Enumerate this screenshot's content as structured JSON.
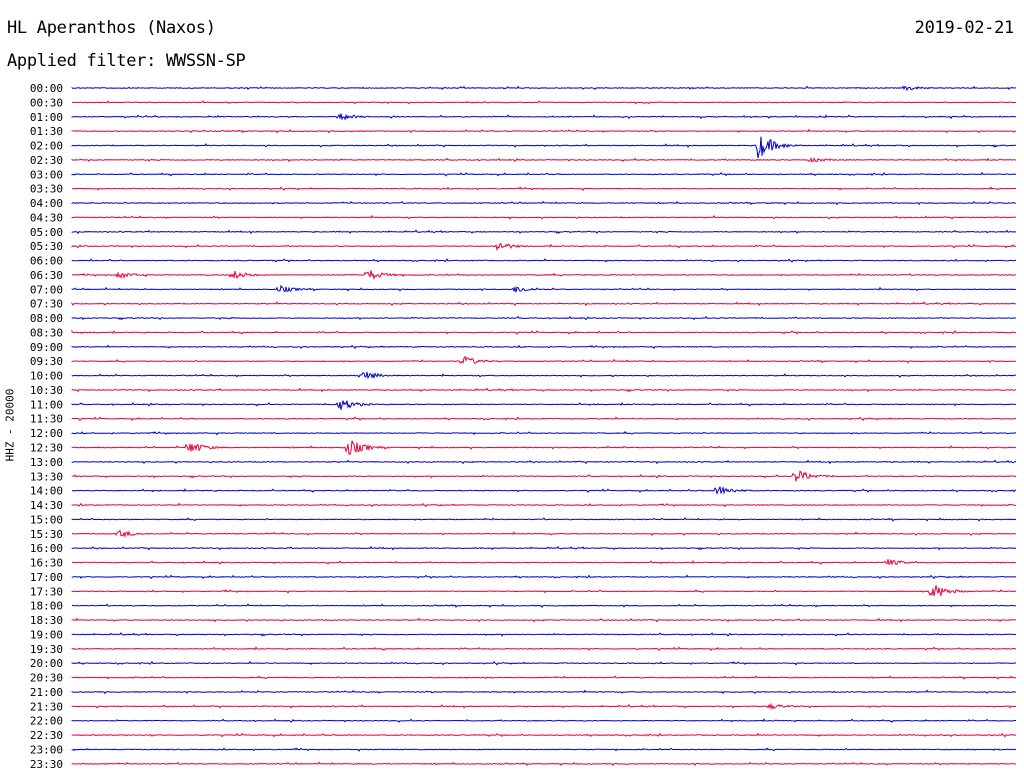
{
  "header": {
    "station": "HL Aperanthos (Naxos)",
    "date": "2019-02-21",
    "filter": "Applied filter: WWSSN-SP"
  },
  "chart_data": {
    "type": "line",
    "title": "HL Aperanthos (Naxos)",
    "ylabel": "HHZ - 20000",
    "xlabel": "",
    "row_labels": [
      "00:00",
      "00:30",
      "01:00",
      "01:30",
      "02:00",
      "02:30",
      "03:00",
      "03:30",
      "04:00",
      "04:30",
      "05:00",
      "05:30",
      "06:00",
      "06:30",
      "07:00",
      "07:30",
      "08:00",
      "08:30",
      "09:00",
      "09:30",
      "10:00",
      "10:30",
      "11:00",
      "11:30",
      "12:00",
      "12:30",
      "13:00",
      "13:30",
      "14:00",
      "14:30",
      "15:00",
      "15:30",
      "16:00",
      "16:30",
      "17:00",
      "17:30",
      "18:00",
      "18:30",
      "19:00",
      "19:30",
      "20:00",
      "20:30",
      "21:00",
      "21:30",
      "22:00",
      "22:30",
      "23:00",
      "23:30"
    ],
    "trace_minutes": 30,
    "colors": [
      "#0000cc",
      "#e8003a"
    ],
    "events": [
      {
        "row": "00:00",
        "minute": 26.5,
        "amp": 3
      },
      {
        "row": "01:00",
        "minute": 8.5,
        "amp": 4
      },
      {
        "row": "02:00",
        "minute": 21.8,
        "amp": 14
      },
      {
        "row": "02:30",
        "minute": 23.5,
        "amp": 3
      },
      {
        "row": "05:30",
        "minute": 13.5,
        "amp": 5
      },
      {
        "row": "06:30",
        "minute": 1.5,
        "amp": 4
      },
      {
        "row": "06:30",
        "minute": 5.1,
        "amp": 5
      },
      {
        "row": "06:30",
        "minute": 9.4,
        "amp": 6
      },
      {
        "row": "07:00",
        "minute": 6.6,
        "amp": 4
      },
      {
        "row": "07:00",
        "minute": 14.1,
        "amp": 4
      },
      {
        "row": "09:30",
        "minute": 12.4,
        "amp": 6
      },
      {
        "row": "10:00",
        "minute": 9.2,
        "amp": 6
      },
      {
        "row": "11:00",
        "minute": 8.5,
        "amp": 7
      },
      {
        "row": "12:30",
        "minute": 3.7,
        "amp": 7
      },
      {
        "row": "12:30",
        "minute": 8.8,
        "amp": 9
      },
      {
        "row": "13:30",
        "minute": 23.0,
        "amp": 7
      },
      {
        "row": "14:00",
        "minute": 20.5,
        "amp": 6
      },
      {
        "row": "15:30",
        "minute": 1.5,
        "amp": 4
      },
      {
        "row": "16:30",
        "minute": 25.9,
        "amp": 4
      },
      {
        "row": "17:30",
        "minute": 27.3,
        "amp": 9
      },
      {
        "row": "21:30",
        "minute": 22.2,
        "amp": 3
      }
    ]
  }
}
